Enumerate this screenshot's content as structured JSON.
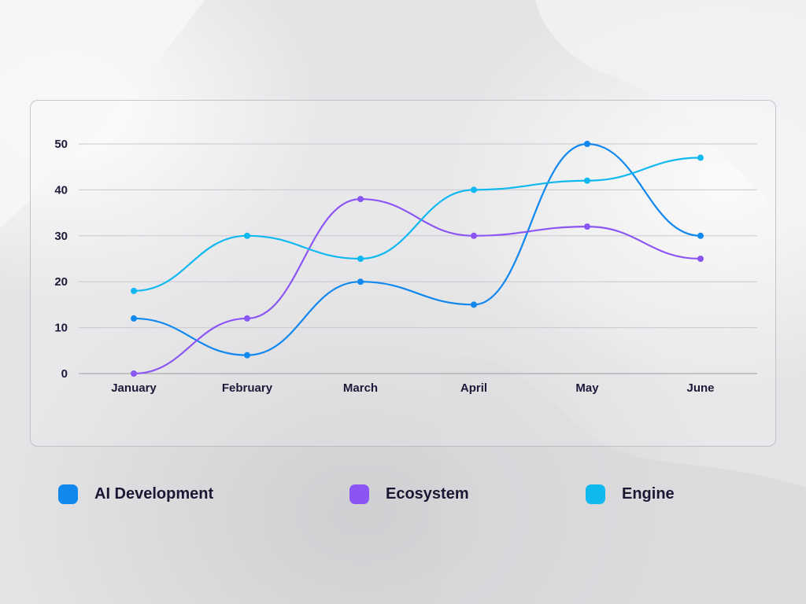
{
  "chart_data": {
    "type": "line",
    "categories": [
      "January",
      "February",
      "March",
      "April",
      "May",
      "June"
    ],
    "series": [
      {
        "name": "AI Development",
        "color": "#1188ee",
        "values": [
          12,
          4,
          20,
          15,
          50,
          30
        ]
      },
      {
        "name": "Ecosystem",
        "color": "#8b55f4",
        "values": [
          0,
          12,
          38,
          30,
          32,
          25
        ]
      },
      {
        "name": "Engine",
        "color": "#10b8f0",
        "values": [
          18,
          30,
          25,
          40,
          42,
          47
        ]
      }
    ],
    "yticks": [
      "0",
      "10",
      "20",
      "30",
      "40",
      "50"
    ],
    "ylim": [
      0,
      50
    ],
    "grid": true,
    "legend_position": "bottom",
    "line_style": "smooth"
  }
}
